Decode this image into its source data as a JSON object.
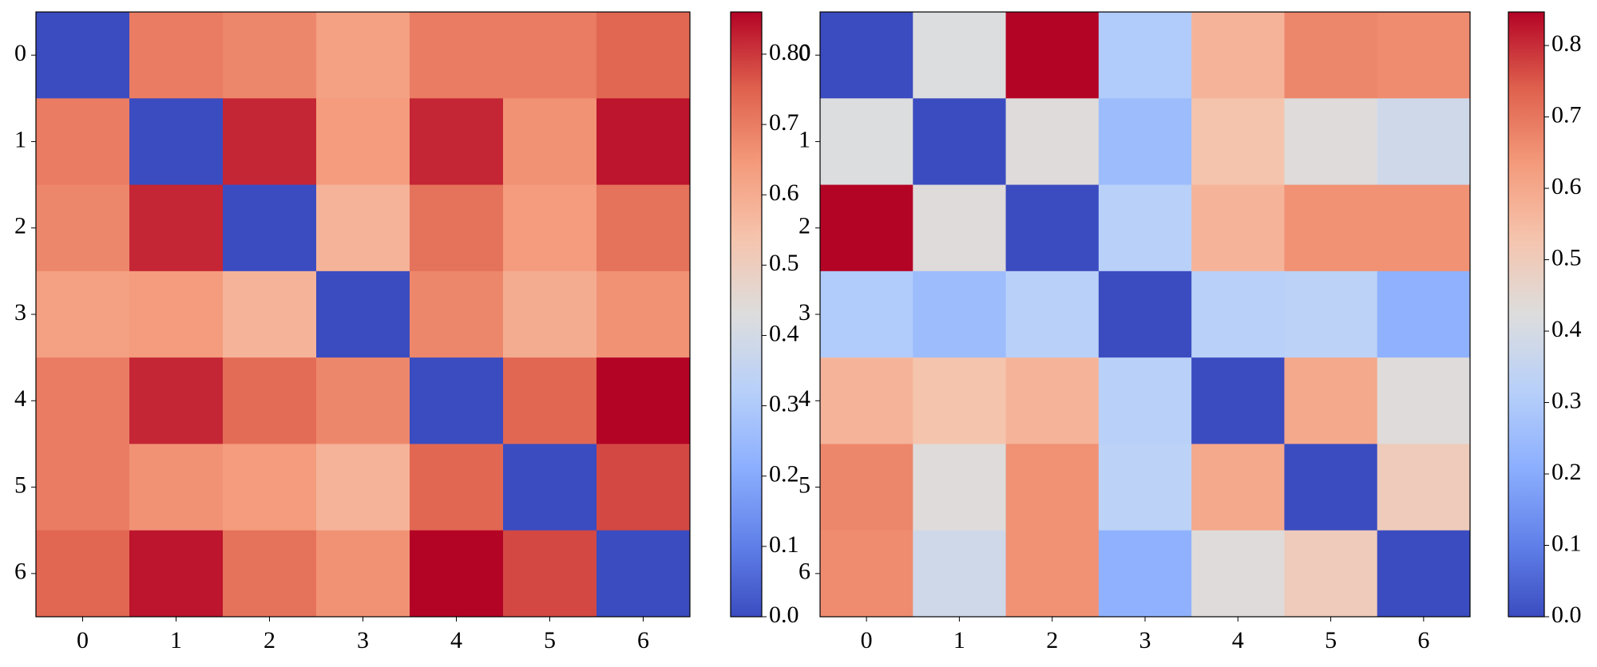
{
  "chart_data": [
    {
      "type": "heatmap",
      "colormap": "coolwarm",
      "xticks": [
        0,
        1,
        2,
        3,
        4,
        5,
        6
      ],
      "yticks": [
        0,
        1,
        2,
        3,
        4,
        5,
        6
      ],
      "values": [
        [
          0,
          0.7,
          0.68,
          0.63,
          0.7,
          0.7,
          0.74
        ],
        [
          0.7,
          0,
          0.82,
          0.64,
          0.82,
          0.66,
          0.84
        ],
        [
          0.68,
          0.82,
          0,
          0.58,
          0.72,
          0.64,
          0.72
        ],
        [
          0.63,
          0.64,
          0.58,
          0,
          0.68,
          0.6,
          0.66
        ],
        [
          0.7,
          0.82,
          0.73,
          0.68,
          0,
          0.74,
          0.86
        ],
        [
          0.7,
          0.66,
          0.64,
          0.58,
          0.74,
          0,
          0.78
        ],
        [
          0.74,
          0.84,
          0.72,
          0.66,
          0.86,
          0.78,
          0
        ]
      ],
      "zlim": [
        0,
        0.86
      ],
      "colorbar_ticks": [
        {
          "value": 0,
          "label": "0.0"
        },
        0.1,
        0.2,
        0.3,
        0.4,
        0.5,
        0.6,
        0.7,
        {
          "value": 0.8,
          "label": "0.80"
        }
      ]
    },
    {
      "type": "heatmap",
      "colormap": "coolwarm",
      "xticks": [
        0,
        1,
        2,
        3,
        4,
        5,
        6
      ],
      "yticks": [
        0,
        1,
        2,
        3,
        4,
        5,
        6
      ],
      "values": [
        [
          0,
          0.42,
          0.847,
          0.3,
          0.57,
          0.67,
          0.66
        ],
        [
          0.42,
          0,
          0.43,
          0.25,
          0.53,
          0.43,
          0.38
        ],
        [
          0.847,
          0.43,
          0,
          0.32,
          0.57,
          0.65,
          0.65
        ],
        [
          0.3,
          0.25,
          0.32,
          0,
          0.32,
          0.33,
          0.22
        ],
        [
          0.57,
          0.53,
          0.57,
          0.32,
          0,
          0.6,
          0.43
        ],
        [
          0.67,
          0.43,
          0.65,
          0.33,
          0.6,
          0,
          0.5
        ],
        [
          0.66,
          0.38,
          0.65,
          0.22,
          0.43,
          0.5,
          0
        ]
      ],
      "zlim": [
        0,
        0.847
      ],
      "colorbar_ticks": [
        {
          "value": 0,
          "label": "0.0"
        },
        0.1,
        0.2,
        0.3,
        0.4,
        0.5,
        0.6,
        0.7,
        0.8
      ]
    }
  ]
}
